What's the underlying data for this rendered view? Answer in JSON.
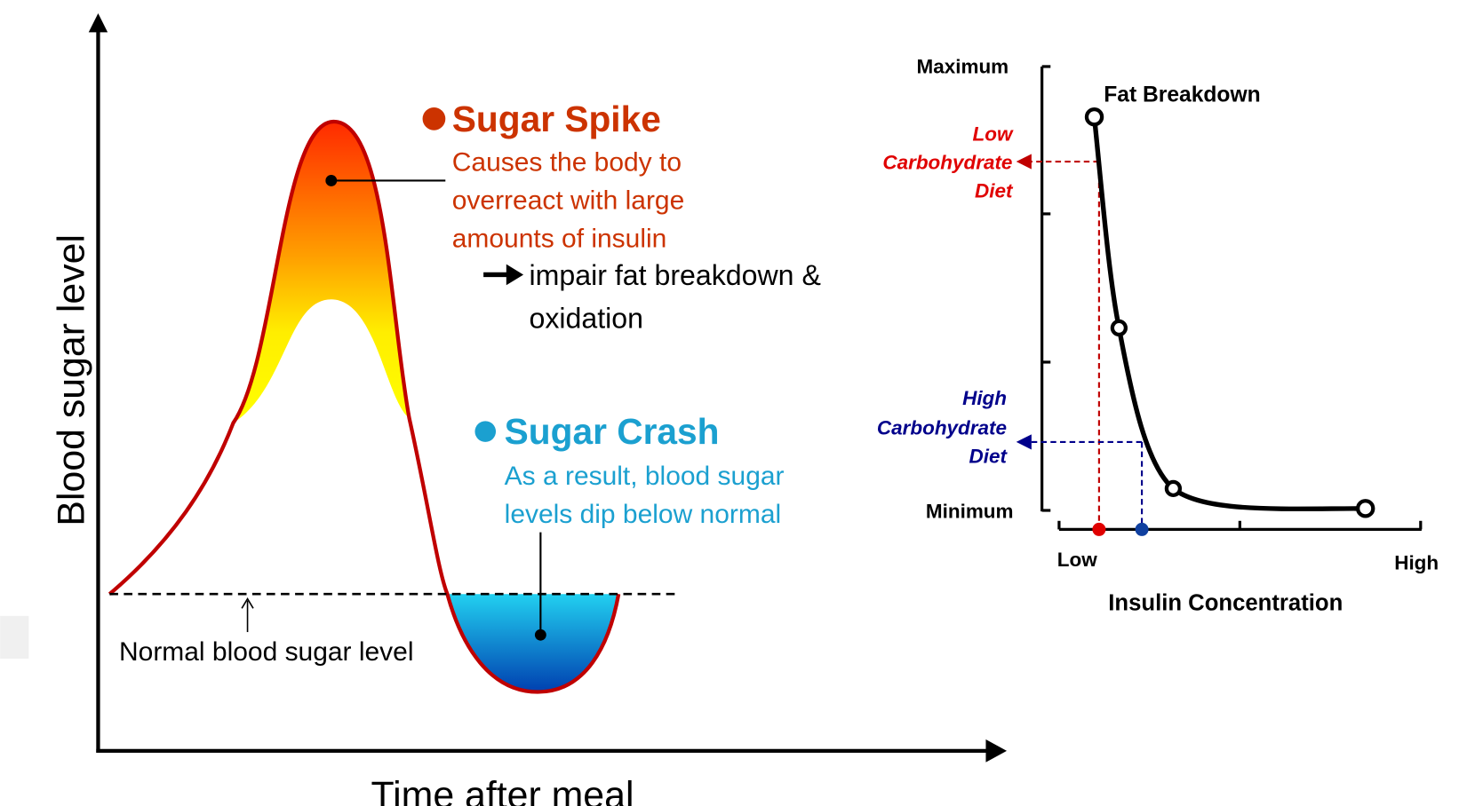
{
  "left_graph": {
    "y_axis_label": "Blood sugar level",
    "x_axis_label": "Time after meal",
    "normal_label": "Normal blood sugar level",
    "spike": {
      "title": "Sugar Spike",
      "description": [
        "Causes the body to",
        "overreact with large",
        "amounts of insulin"
      ],
      "consequence": [
        "impair fat breakdown &",
        "oxidation"
      ]
    },
    "crash": {
      "title": "Sugar Crash",
      "description": [
        "As a result, blood sugar",
        "levels dip below normal"
      ]
    }
  },
  "right_graph": {
    "y_max_label": "Maximum",
    "y_min_label": "Minimum",
    "curve_label": "Fat Breakdown",
    "low_carb_label": [
      "Low",
      "Carbohydrate",
      "Diet"
    ],
    "high_carb_label": [
      "High",
      "Carbohydrate",
      "Diet"
    ],
    "x_low_label": "Low",
    "x_high_label": "High",
    "x_axis_label": "Insulin Concentration"
  }
}
